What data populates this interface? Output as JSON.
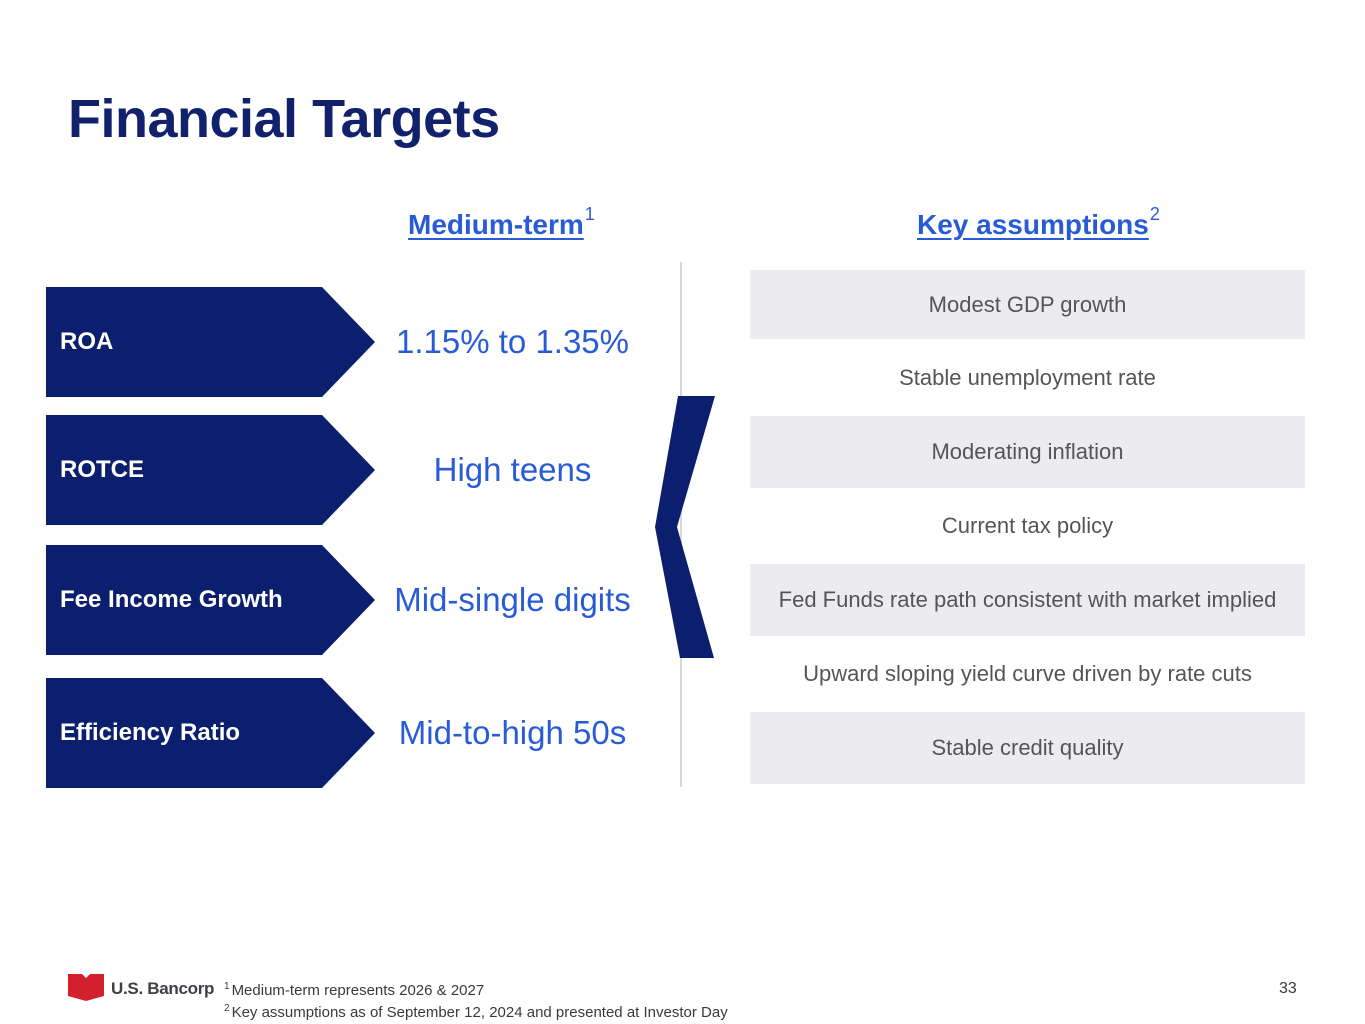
{
  "title": "Financial Targets",
  "headers": {
    "medium_term": "Medium-term",
    "medium_term_sup": "1",
    "key_assumptions": "Key assumptions",
    "key_assumptions_sup": "2"
  },
  "metrics": [
    {
      "label": "ROA",
      "value": "1.15% to 1.35%"
    },
    {
      "label": "ROTCE",
      "value": "High teens"
    },
    {
      "label": "Fee Income Growth",
      "value": "Mid-single digits"
    },
    {
      "label": "Efficiency Ratio",
      "value": "Mid-to-high 50s"
    }
  ],
  "assumptions": [
    "Modest GDP growth",
    "Stable unemployment rate",
    "Moderating inflation",
    "Current tax policy",
    "Fed Funds rate path consistent with market implied",
    "Upward sloping yield curve driven by rate cuts",
    "Stable credit quality"
  ],
  "footer": {
    "logo_text": "U.S. Bancorp",
    "footnote_1_mark": "1",
    "footnote_1": "Medium-term represents 2026 & 2027",
    "footnote_2_mark": "2",
    "footnote_2": "Key assumptions as of September 12, 2024 and presented at Investor Day",
    "page_number": "33"
  },
  "colors": {
    "navy": "#0b1f6e",
    "accent_blue": "#2a5bd7",
    "shade": "#ececf0",
    "logo_red": "#d4202c"
  }
}
